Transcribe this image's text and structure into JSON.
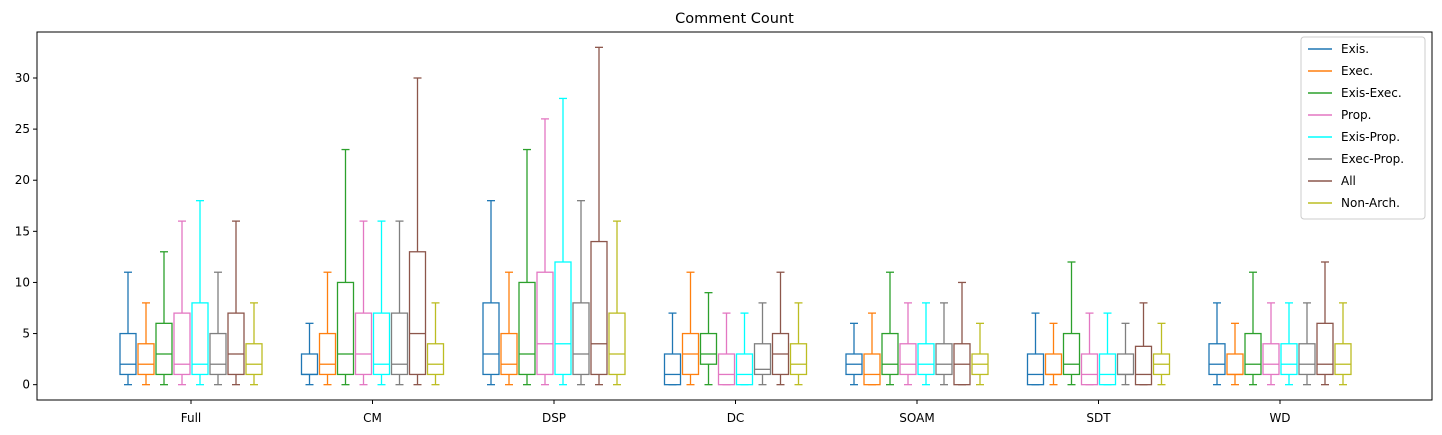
{
  "chart_data": {
    "type": "box",
    "title": "Comment Count",
    "xlabel": "",
    "ylabel": "",
    "categories": [
      "Full",
      "CM",
      "DSP",
      "DC",
      "SOAM",
      "SDT",
      "WD"
    ],
    "ylim": [
      -1.5,
      34.5
    ],
    "yticks": [
      0,
      5,
      10,
      15,
      20,
      25,
      30
    ],
    "legend_position": "top-right",
    "grid": false,
    "series": [
      {
        "name": "Exis.",
        "color": "#1f77b4",
        "boxes": [
          {
            "min": 0,
            "q1": 1,
            "median": 2,
            "q3": 5,
            "max": 11
          },
          {
            "min": 0,
            "q1": 1,
            "median": 1,
            "q3": 3,
            "max": 6
          },
          {
            "min": 0,
            "q1": 1,
            "median": 3,
            "q3": 8,
            "max": 18
          },
          {
            "min": 0,
            "q1": 0,
            "median": 1,
            "q3": 3,
            "max": 7
          },
          {
            "min": 0,
            "q1": 1,
            "median": 2,
            "q3": 3,
            "max": 6
          },
          {
            "min": 0,
            "q1": 0,
            "median": 1,
            "q3": 3,
            "max": 7
          },
          {
            "min": 0,
            "q1": 1,
            "median": 2,
            "q3": 4,
            "max": 8
          }
        ]
      },
      {
        "name": "Exec.",
        "color": "#ff7f0e",
        "boxes": [
          {
            "min": 0,
            "q1": 1,
            "median": 2,
            "q3": 4,
            "max": 8
          },
          {
            "min": 0,
            "q1": 1,
            "median": 2,
            "q3": 5,
            "max": 11
          },
          {
            "min": 0,
            "q1": 1,
            "median": 2,
            "q3": 5,
            "max": 11
          },
          {
            "min": 0,
            "q1": 1,
            "median": 3,
            "q3": 5,
            "max": 11
          },
          {
            "min": 0,
            "q1": 0,
            "median": 1,
            "q3": 3,
            "max": 7
          },
          {
            "min": 0,
            "q1": 1,
            "median": 1,
            "q3": 3,
            "max": 6
          },
          {
            "min": 0,
            "q1": 1,
            "median": 1,
            "q3": 3,
            "max": 6
          }
        ]
      },
      {
        "name": "Exis-Exec.",
        "color": "#2ca02c",
        "boxes": [
          {
            "min": 0,
            "q1": 1,
            "median": 3,
            "q3": 6,
            "max": 13
          },
          {
            "min": 0,
            "q1": 1,
            "median": 3,
            "q3": 10,
            "max": 23
          },
          {
            "min": 0,
            "q1": 1,
            "median": 3,
            "q3": 10,
            "max": 23
          },
          {
            "min": 0,
            "q1": 2,
            "median": 3,
            "q3": 5,
            "max": 9
          },
          {
            "min": 0,
            "q1": 1,
            "median": 2,
            "q3": 5,
            "max": 11
          },
          {
            "min": 0,
            "q1": 1,
            "median": 2,
            "q3": 5,
            "max": 12
          },
          {
            "min": 0,
            "q1": 1,
            "median": 2,
            "q3": 5,
            "max": 11
          }
        ]
      },
      {
        "name": "Prop.",
        "color": "#e377c2",
        "boxes": [
          {
            "min": 0,
            "q1": 1,
            "median": 2,
            "q3": 7,
            "max": 16
          },
          {
            "min": 0,
            "q1": 1,
            "median": 3,
            "q3": 7,
            "max": 16
          },
          {
            "min": 0,
            "q1": 1,
            "median": 4,
            "q3": 11,
            "max": 26
          },
          {
            "min": 0,
            "q1": 0,
            "median": 1,
            "q3": 3,
            "max": 7
          },
          {
            "min": 0,
            "q1": 1,
            "median": 2,
            "q3": 4,
            "max": 8
          },
          {
            "min": 0,
            "q1": 0,
            "median": 1,
            "q3": 3,
            "max": 7
          },
          {
            "min": 0,
            "q1": 1,
            "median": 2,
            "q3": 4,
            "max": 8
          }
        ]
      },
      {
        "name": "Exis-Prop.",
        "color": "#00ffff",
        "boxes": [
          {
            "min": 0,
            "q1": 1,
            "median": 2,
            "q3": 8,
            "max": 18
          },
          {
            "min": 0,
            "q1": 1,
            "median": 2,
            "q3": 7,
            "max": 16
          },
          {
            "min": 0,
            "q1": 1,
            "median": 4,
            "q3": 12,
            "max": 28
          },
          {
            "min": 0,
            "q1": 0,
            "median": 1,
            "q3": 3,
            "max": 7
          },
          {
            "min": 0,
            "q1": 1,
            "median": 2,
            "q3": 4,
            "max": 8
          },
          {
            "min": 0,
            "q1": 0,
            "median": 1,
            "q3": 3,
            "max": 7
          },
          {
            "min": 0,
            "q1": 1,
            "median": 2,
            "q3": 4,
            "max": 8
          }
        ]
      },
      {
        "name": "Exec-Prop.",
        "color": "#7f7f7f",
        "boxes": [
          {
            "min": 0,
            "q1": 1,
            "median": 2,
            "q3": 5,
            "max": 11
          },
          {
            "min": 0,
            "q1": 1,
            "median": 2,
            "q3": 7,
            "max": 16
          },
          {
            "min": 0,
            "q1": 1,
            "median": 3,
            "q3": 8,
            "max": 18
          },
          {
            "min": 0,
            "q1": 1,
            "median": 1.5,
            "q3": 4,
            "max": 8
          },
          {
            "min": 0,
            "q1": 1,
            "median": 2,
            "q3": 4,
            "max": 8
          },
          {
            "min": 0,
            "q1": 1,
            "median": 1,
            "q3": 3,
            "max": 6
          },
          {
            "min": 0,
            "q1": 1,
            "median": 2,
            "q3": 4,
            "max": 8
          }
        ]
      },
      {
        "name": "All",
        "color": "#8c564b",
        "boxes": [
          {
            "min": 0,
            "q1": 1,
            "median": 3,
            "q3": 7,
            "max": 16
          },
          {
            "min": 0,
            "q1": 1,
            "median": 5,
            "q3": 13,
            "max": 30
          },
          {
            "min": 0,
            "q1": 1,
            "median": 4,
            "q3": 14,
            "max": 33
          },
          {
            "min": 0,
            "q1": 1,
            "median": 3,
            "q3": 5,
            "max": 11
          },
          {
            "min": 0,
            "q1": 0,
            "median": 2,
            "q3": 4,
            "max": 10
          },
          {
            "min": 0,
            "q1": 0,
            "median": 1,
            "q3": 3.75,
            "max": 8
          },
          {
            "min": 0,
            "q1": 1,
            "median": 2,
            "q3": 6,
            "max": 12
          }
        ]
      },
      {
        "name": "Non-Arch.",
        "color": "#bcbd22",
        "boxes": [
          {
            "min": 0,
            "q1": 1,
            "median": 2,
            "q3": 4,
            "max": 8
          },
          {
            "min": 0,
            "q1": 1,
            "median": 2,
            "q3": 4,
            "max": 8
          },
          {
            "min": 0,
            "q1": 1,
            "median": 3,
            "q3": 7,
            "max": 16
          },
          {
            "min": 0,
            "q1": 1,
            "median": 2,
            "q3": 4,
            "max": 8
          },
          {
            "min": 0,
            "q1": 1,
            "median": 2,
            "q3": 3,
            "max": 6
          },
          {
            "min": 0,
            "q1": 1,
            "median": 2,
            "q3": 3,
            "max": 6
          },
          {
            "min": 0,
            "q1": 1,
            "median": 2,
            "q3": 4,
            "max": 8
          }
        ]
      }
    ]
  }
}
